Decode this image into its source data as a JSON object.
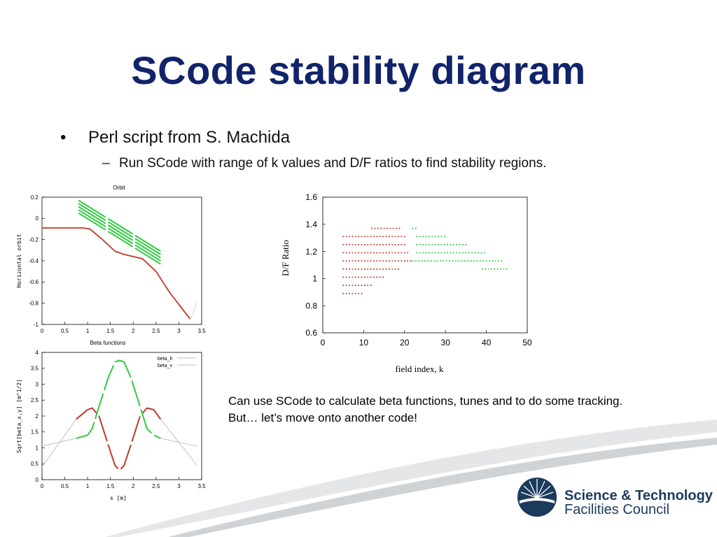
{
  "slide": {
    "title": "SCode stability diagram",
    "bullets": [
      {
        "marker": "•",
        "text": "Perl script from S. Machida"
      }
    ],
    "sub_bullets": [
      {
        "marker": "–",
        "text": "Run SCode with range of k values and D/F ratios to find stability regions."
      }
    ],
    "note": "Can use SCode to calculate beta functions, tunes and to do some tracking. But… let’s move onto another code!",
    "logo": {
      "line1": "Science & Technology",
      "line2": "Facilities Council"
    },
    "colors": {
      "title": "#10236b",
      "red_series": "#c0392b",
      "green_series": "#2ecc40",
      "logo": "#1b3a5c"
    }
  },
  "chart_data": [
    {
      "type": "line",
      "title": "Orbit",
      "xlabel": "Beta functions",
      "ylabel": "Horizontal orbit",
      "xlim": [
        0,
        3.5
      ],
      "ylim": [
        -1,
        0.2
      ],
      "xticks": [
        "0",
        "0.5",
        "1",
        "1.5",
        "2",
        "2.5",
        "3",
        "3.5"
      ],
      "yticks": [
        "0.2",
        "0",
        "-0.2",
        "-0.4",
        "-0.6",
        "-0.8",
        "-1"
      ],
      "series": [
        {
          "color": "#c0392b",
          "x": [
            0,
            0.9,
            1.05,
            1.3,
            1.6,
            1.8,
            2.2,
            2.5,
            2.8,
            3.25
          ],
          "y": [
            -0.09,
            -0.09,
            -0.1,
            -0.19,
            -0.31,
            -0.34,
            -0.38,
            -0.5,
            -0.7,
            -0.95
          ]
        },
        {
          "color": "#2ecc40",
          "lines": [
            {
              "x": [
                0.8,
                2.6
              ],
              "y": [
                0.17,
                -0.31
              ]
            },
            {
              "x": [
                0.8,
                2.6
              ],
              "y": [
                0.14,
                -0.34
              ]
            },
            {
              "x": [
                0.8,
                2.6
              ],
              "y": [
                0.11,
                -0.37
              ]
            },
            {
              "x": [
                0.8,
                2.6
              ],
              "y": [
                0.08,
                -0.4
              ]
            },
            {
              "x": [
                0.8,
                2.6
              ],
              "y": [
                0.05,
                -0.43
              ]
            }
          ]
        }
      ]
    },
    {
      "type": "line",
      "title": "",
      "xlabel": "s [m]",
      "ylabel": "Sqrt[beta_x,y] [m^1/2]",
      "xlim": [
        0,
        3.5
      ],
      "ylim": [
        0,
        4
      ],
      "xticks": [
        "0",
        "0.5",
        "1",
        "1.5",
        "2",
        "2.5",
        "3",
        "3.5"
      ],
      "yticks": [
        "4",
        "3.5",
        "3",
        "2.5",
        "2",
        "1.5",
        "1",
        "0.5",
        "0"
      ],
      "legend": [
        "beta_h",
        "beta_v"
      ],
      "series": [
        {
          "name": "beta_h",
          "color": "#c0392b",
          "x": [
            0.75,
            1.0,
            1.1,
            1.25,
            1.45,
            1.6,
            1.7,
            1.8,
            1.95,
            2.15,
            2.3,
            2.45,
            2.6
          ],
          "y": [
            1.9,
            2.2,
            2.25,
            2.0,
            1.1,
            0.45,
            0.3,
            0.45,
            1.1,
            2.0,
            2.25,
            2.2,
            1.9
          ]
        },
        {
          "name": "beta_v",
          "color": "#2ecc40",
          "x": [
            0.75,
            1.0,
            1.1,
            1.25,
            1.45,
            1.6,
            1.7,
            1.8,
            1.95,
            2.15,
            2.3,
            2.45,
            2.6
          ],
          "y": [
            1.3,
            1.4,
            1.6,
            2.3,
            3.2,
            3.7,
            3.75,
            3.7,
            3.2,
            2.3,
            1.6,
            1.4,
            1.3
          ]
        },
        {
          "name": "beta_h-outer",
          "color": "#bbbbbb",
          "x": [
            0,
            0.75
          ],
          "y": [
            0.4,
            1.9
          ],
          "x2": [
            2.6,
            3.4
          ],
          "y2": [
            1.9,
            0.45
          ]
        },
        {
          "name": "beta_v-outer",
          "color": "#bbbbbb",
          "x": [
            0,
            0.75
          ],
          "y": [
            1.05,
            1.3
          ],
          "x2": [
            2.6,
            3.4
          ],
          "y2": [
            1.3,
            1.05
          ]
        }
      ]
    },
    {
      "type": "scatter",
      "title": "",
      "xlabel": "field index, k",
      "ylabel": "D/F Ratio",
      "xlim": [
        0,
        50
      ],
      "ylim": [
        0.6,
        1.6
      ],
      "xticks": [
        "0",
        "10",
        "20",
        "30",
        "40",
        "50"
      ],
      "yticks": [
        "1.6",
        "1.4",
        "1.2",
        "1",
        "0.8",
        "0.6"
      ],
      "red_rows": [
        {
          "y": 1.37,
          "k": [
            12,
            19
          ]
        },
        {
          "y": 1.31,
          "k": [
            5,
            20
          ]
        },
        {
          "y": 1.25,
          "k": [
            5,
            20
          ]
        },
        {
          "y": 1.19,
          "k": [
            5,
            21
          ]
        },
        {
          "y": 1.13,
          "k": [
            5,
            22
          ]
        },
        {
          "y": 1.07,
          "k": [
            5,
            19
          ]
        },
        {
          "y": 1.01,
          "k": [
            5,
            15
          ]
        },
        {
          "y": 0.95,
          "k": [
            5,
            12
          ]
        },
        {
          "y": 0.89,
          "k": [
            5,
            10
          ]
        }
      ],
      "green_rows": [
        {
          "y": 1.37,
          "k": [
            22,
            23
          ]
        },
        {
          "y": 1.31,
          "k": [
            23,
            30
          ]
        },
        {
          "y": 1.25,
          "k": [
            23,
            35
          ]
        },
        {
          "y": 1.19,
          "k": [
            23,
            40
          ]
        },
        {
          "y": 1.13,
          "k": [
            22,
            44
          ]
        },
        {
          "y": 1.07,
          "k": [
            39,
            45
          ]
        }
      ]
    }
  ]
}
